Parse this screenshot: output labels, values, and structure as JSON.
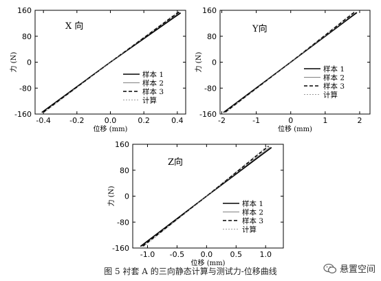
{
  "figure": {
    "caption": "图 5 衬套 A 的三向静态计算与测试力-位移曲线",
    "watermark_text": "悬置空间",
    "watermark_icon": "wechat-icon"
  },
  "chart_data": [
    {
      "type": "line",
      "annotation": "X 向",
      "xlabel": "位移 (mm)",
      "ylabel": "力 (N)",
      "xlim": [
        -0.45,
        0.45
      ],
      "ylim": [
        -160,
        160
      ],
      "xticks": [
        -0.4,
        -0.2,
        0.0,
        0.2,
        0.4
      ],
      "xtick_labels": [
        "-0.4",
        "-0.2",
        "0.0",
        "0.2",
        "0.4"
      ],
      "yticks": [
        -160,
        -80,
        0,
        80,
        160
      ],
      "ytick_labels": [
        "-160",
        "-80",
        "0",
        "80",
        "160"
      ],
      "legend_position": "bottom-right",
      "grid": false,
      "series": [
        {
          "name": "样本 1",
          "style": "solid-bold",
          "x": [
            -0.41,
            0.0,
            0.42
          ],
          "y": [
            -155,
            0,
            152
          ]
        },
        {
          "name": "样本 2",
          "style": "solid-thin",
          "x": [
            -0.405,
            0.0,
            0.415
          ],
          "y": [
            -155,
            0,
            154
          ]
        },
        {
          "name": "样本 3",
          "style": "dashed-bold",
          "x": [
            -0.4,
            0.0,
            0.41
          ],
          "y": [
            -154,
            0,
            155
          ]
        },
        {
          "name": "计算",
          "style": "dotted-thin",
          "x": [
            -0.395,
            0.0,
            0.405
          ],
          "y": [
            -155,
            0,
            156
          ]
        }
      ]
    },
    {
      "type": "line",
      "annotation": "Y向",
      "xlabel": "位移 (mm)",
      "ylabel": "力 (N)",
      "xlim": [
        -2.05,
        2.3
      ],
      "ylim": [
        -160,
        160
      ],
      "xticks": [
        -2,
        -1,
        0,
        1,
        2
      ],
      "xtick_labels": [
        "-2",
        "-1",
        "0",
        "1",
        "2"
      ],
      "yticks": [
        -160,
        -80,
        0,
        80,
        160
      ],
      "ytick_labels": [
        "-160",
        "-80",
        "0",
        "80",
        "160"
      ],
      "legend_position": "bottom-right",
      "grid": false,
      "series": [
        {
          "name": "样本 1",
          "style": "solid-bold",
          "x": [
            -1.95,
            0.0,
            1.92
          ],
          "y": [
            -155,
            0,
            153
          ]
        },
        {
          "name": "样本 2",
          "style": "solid-thin",
          "x": [
            -1.92,
            0.0,
            1.9
          ],
          "y": [
            -154,
            0,
            154
          ]
        },
        {
          "name": "样本 3",
          "style": "dashed-bold",
          "x": [
            -1.9,
            0.0,
            1.86
          ],
          "y": [
            -154,
            0,
            155
          ]
        },
        {
          "name": "计算",
          "style": "dotted-thin",
          "x": [
            -1.88,
            0.0,
            1.84
          ],
          "y": [
            -155,
            0,
            156
          ]
        }
      ]
    },
    {
      "type": "line",
      "annotation": "Z向",
      "xlabel": "位移 (mm)",
      "ylabel": "力 (N)",
      "xlim": [
        -1.25,
        1.3
      ],
      "ylim": [
        -160,
        160
      ],
      "xticks": [
        -1.0,
        -0.5,
        0.0,
        0.5,
        1.0
      ],
      "xtick_labels": [
        "-1.0",
        "-0.5",
        "0.0",
        "0.5",
        "1.0"
      ],
      "yticks": [
        -160,
        -80,
        0,
        80,
        160
      ],
      "ytick_labels": [
        "-160",
        "-80",
        "0",
        "80",
        "160"
      ],
      "legend_position": "bottom-right",
      "grid": false,
      "series": [
        {
          "name": "样本 1",
          "style": "solid-bold",
          "x": [
            -1.12,
            0.0,
            1.1
          ],
          "y": [
            -155,
            0,
            150
          ]
        },
        {
          "name": "样本 2",
          "style": "solid-thin",
          "x": [
            -1.1,
            0.0,
            1.08
          ],
          "y": [
            -155,
            0,
            152
          ]
        },
        {
          "name": "样本 3",
          "style": "dashed-bold",
          "x": [
            -1.08,
            0.0,
            1.05
          ],
          "y": [
            -154,
            0,
            154
          ]
        },
        {
          "name": "计算",
          "style": "dotted-thin",
          "x": [
            -1.06,
            0.0,
            1.03
          ],
          "y": [
            -155,
            0,
            155
          ]
        }
      ]
    }
  ]
}
